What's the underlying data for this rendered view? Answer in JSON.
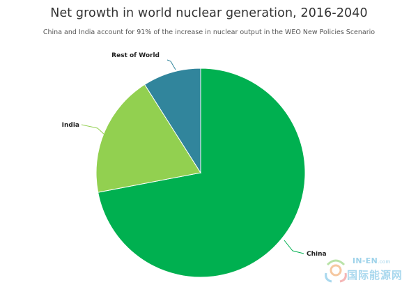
{
  "chart_data": {
    "type": "pie",
    "title": "Net growth in world nuclear generation, 2016-2040",
    "subtitle": "China and India account for 91% of the increase in nuclear output in the WEO New Policies Scenario",
    "slices": [
      {
        "label": "China",
        "value": 72,
        "color": "#00b050"
      },
      {
        "label": "India",
        "value": 19,
        "color": "#92d050"
      },
      {
        "label": "Rest of World",
        "value": 9,
        "color": "#31859c"
      }
    ]
  },
  "watermark": {
    "top": "IN-EN",
    "top_suffix": ".com",
    "bottom": "国际能源网"
  }
}
